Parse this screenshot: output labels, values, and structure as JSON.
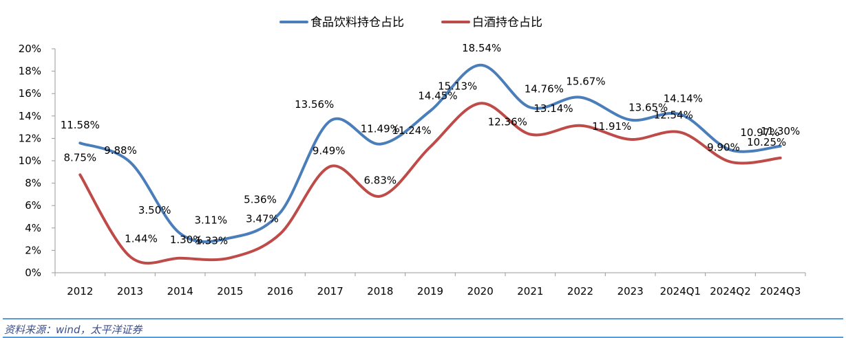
{
  "chart_data": {
    "type": "line",
    "categories": [
      "2012",
      "2013",
      "2014",
      "2015",
      "2016",
      "2017",
      "2018",
      "2019",
      "2020",
      "2021",
      "2022",
      "2023",
      "2024Q1",
      "2024Q2",
      "2024Q3"
    ],
    "series": [
      {
        "name": "食品饮料持仓占比",
        "color": "#4a7ebb",
        "values": [
          11.58,
          9.88,
          3.5,
          3.11,
          5.36,
          13.56,
          11.49,
          14.45,
          18.54,
          14.76,
          15.67,
          13.65,
          14.14,
          10.97,
          11.3
        ],
        "labels": [
          "11.58%",
          "9.88%",
          "3.50%",
          "3.11%",
          "5.36%",
          "13.56%",
          "11.49%",
          "14.45%",
          "18.54%",
          "14.76%",
          "15.67%",
          "13.65%",
          "14.14%",
          "10.97%",
          "11.30%"
        ]
      },
      {
        "name": "白酒持仓占比",
        "color": "#be4b48",
        "values": [
          8.75,
          1.44,
          1.3,
          1.33,
          3.47,
          9.49,
          6.83,
          11.24,
          15.13,
          12.36,
          13.14,
          11.91,
          12.54,
          9.9,
          10.25
        ],
        "labels": [
          "8.75%",
          "1.44%",
          "1.30%",
          "1.33%",
          "3.47%",
          "9.49%",
          "6.83%",
          "11.24%",
          "15.13%",
          "12.36%",
          "13.14%",
          "11.91%",
          "12.54%",
          "9.90%",
          "10.25%"
        ]
      }
    ],
    "y_ticks": [
      "0%",
      "2%",
      "4%",
      "6%",
      "8%",
      "10%",
      "12%",
      "14%",
      "16%",
      "18%",
      "20%"
    ],
    "ylim": [
      0,
      20
    ],
    "grid": false,
    "legend_position": "top-center"
  },
  "source_note": "资料来源：wind，太平洋证券"
}
